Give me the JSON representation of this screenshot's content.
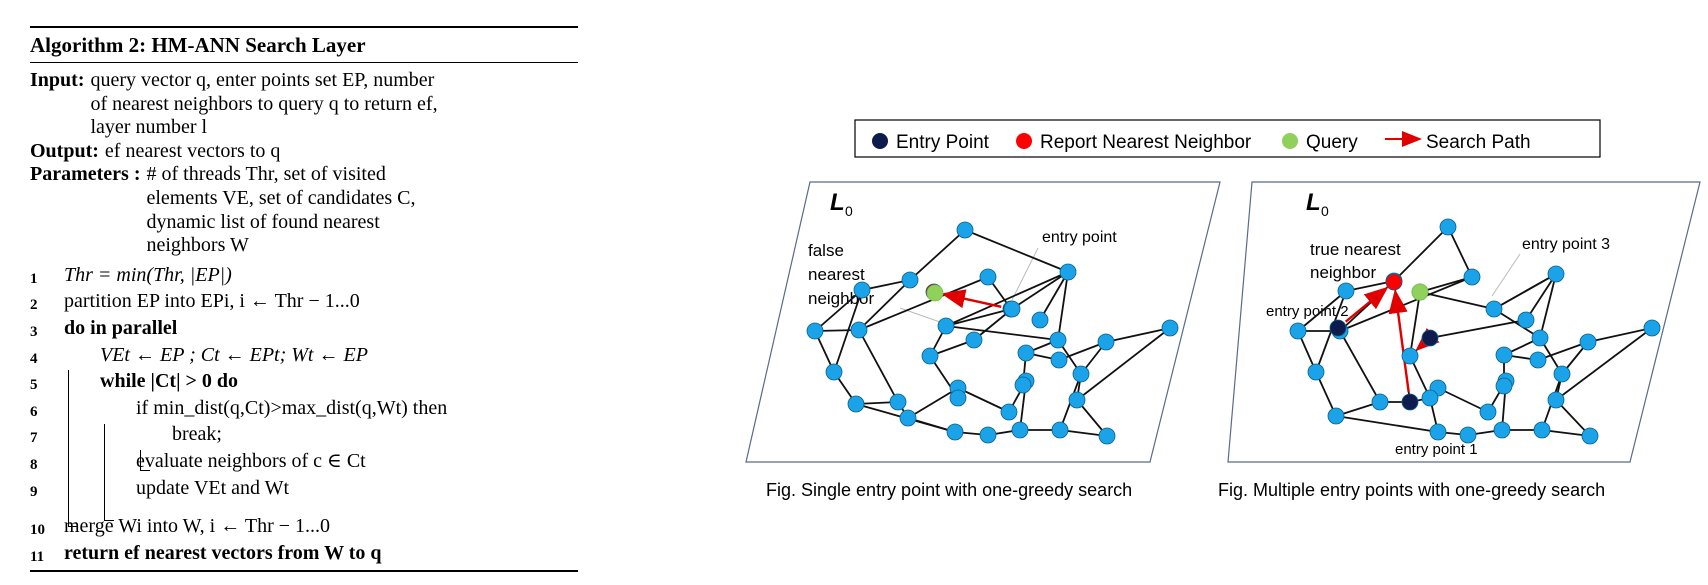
{
  "algorithm": {
    "title": "Algorithm 2: HM-ANN Search Layer",
    "input_label": "Input:",
    "input_lines": [
      "query vector q, enter points set EP, number",
      "of nearest neighbors to query q to return ef,",
      "layer number l"
    ],
    "output_label": "Output:",
    "output_text": "ef nearest vectors to q",
    "parameters_label": "Parameters :",
    "parameters_lines": [
      "# of threads Thr, set of visited",
      "elements VE, set of candidates C,",
      "dynamic list of found nearest",
      "neighbors W"
    ],
    "lines": [
      {
        "num": "1",
        "text": "Thr = min(Thr, |EP|)"
      },
      {
        "num": "2",
        "text": "partition EP into EPi, i ← Thr − 1...0"
      },
      {
        "num": "3",
        "text": "do in parallel"
      },
      {
        "num": "4",
        "text": "VEt ← EP ; Ct ← EPt; Wt ← EP"
      },
      {
        "num": "5",
        "text": "while |Ct| > 0 do"
      },
      {
        "num": "6",
        "text": "if min_dist(q,Ct)>max_dist(q,Wt) then"
      },
      {
        "num": "7",
        "text": "break;"
      },
      {
        "num": "8",
        "text": "evaluate neighbors of c ∈ Ct"
      },
      {
        "num": "9",
        "text": "update VEt and Wt"
      },
      {
        "num": "10",
        "text": "merge Wi into W, i ← Thr − 1...0"
      },
      {
        "num": "11",
        "text": "return ef nearest vectors from W to q"
      }
    ]
  },
  "legend": {
    "entry_point": "Entry Point",
    "report_nn": "Report Nearest Neighbor",
    "query": "Query",
    "search_path": "Search Path"
  },
  "colors": {
    "entry_point": "#0d1b4d",
    "report_nn": "#ff0000",
    "query": "#8fd15a",
    "node": "#1aa3e8",
    "path": "#e00000"
  },
  "left_figure": {
    "layer_label": "L",
    "layer_sub": "0",
    "annotation_entry": "entry point",
    "annotation_false": [
      "false",
      "nearest",
      "neighbor"
    ],
    "caption": "Fig.  Single entry point with one-greedy search"
  },
  "right_figure": {
    "layer_label": "L",
    "layer_sub": "0",
    "annotation_true": [
      "true nearest",
      "neighbor"
    ],
    "annotation_ep1": "entry point 1",
    "annotation_ep2": "entry point 2",
    "annotation_ep3": "entry point 3",
    "caption": "Fig.  Multiple entry points with one-greedy search"
  }
}
